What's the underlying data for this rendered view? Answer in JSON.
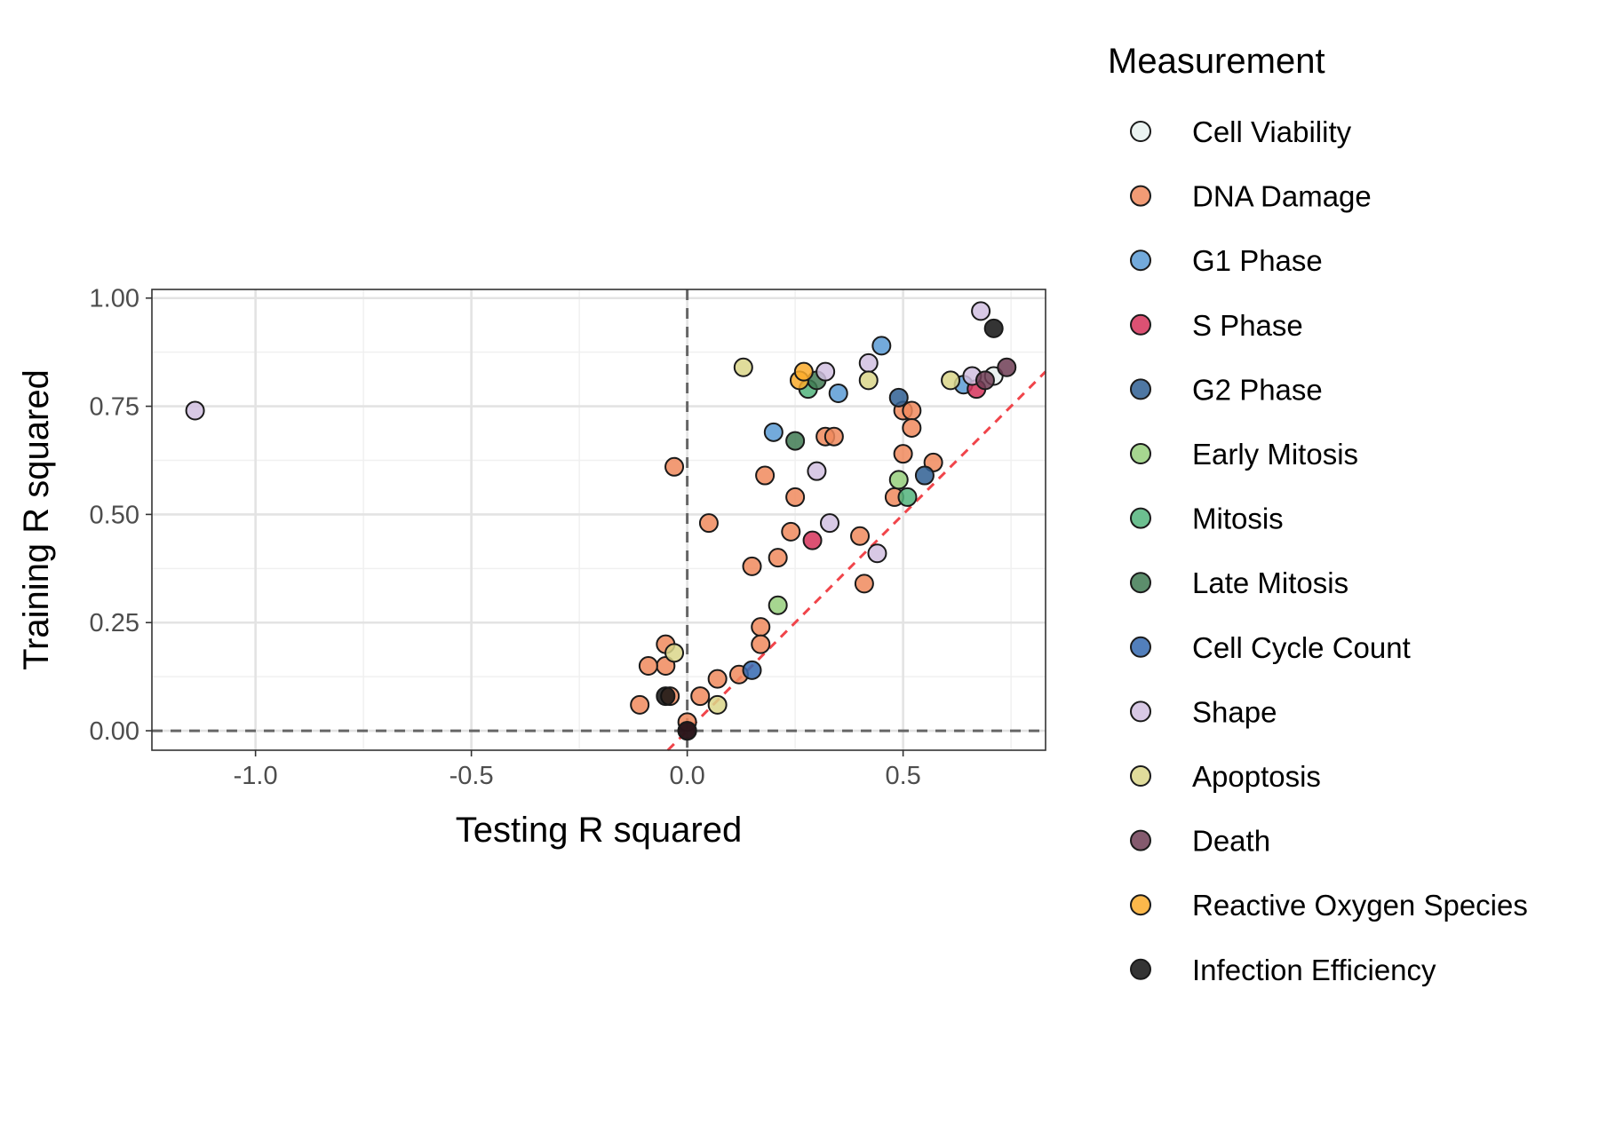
{
  "chart_data": {
    "type": "scatter",
    "xlabel": "Testing R squared",
    "ylabel": "Training R squared",
    "xlim": [
      -1.24,
      0.83
    ],
    "ylim": [
      -0.045,
      1.02
    ],
    "x_ticks": [
      -1.0,
      -0.5,
      0.0,
      0.5
    ],
    "x_tick_labels": [
      "-1.0",
      "-0.5",
      "0.0",
      "0.5"
    ],
    "y_ticks": [
      0.0,
      0.25,
      0.5,
      0.75,
      1.0
    ],
    "y_tick_labels": [
      "0.00",
      "0.25",
      "0.50",
      "0.75",
      "1.00"
    ],
    "grid": true,
    "reference_lines": [
      {
        "type": "vline",
        "x": 0,
        "style": "dashed",
        "color": "#666666"
      },
      {
        "type": "hline",
        "y": 0,
        "style": "dashed",
        "color": "#666666"
      },
      {
        "type": "identity",
        "slope": 1,
        "intercept": 0,
        "style": "dashed",
        "color": "#f0444a"
      }
    ],
    "legend": {
      "title": "Measurement",
      "position": "right",
      "entries": [
        {
          "label": "Cell Viability",
          "color": "#e8f1ee"
        },
        {
          "label": "DNA Damage",
          "color": "#f08a5d"
        },
        {
          "label": "G1 Phase",
          "color": "#5b9bd5"
        },
        {
          "label": "S Phase",
          "color": "#d6335a"
        },
        {
          "label": "G2 Phase",
          "color": "#2f5f93"
        },
        {
          "label": "Early Mitosis",
          "color": "#97cf7d"
        },
        {
          "label": "Mitosis",
          "color": "#52b47c"
        },
        {
          "label": "Late Mitosis",
          "color": "#3f7a52"
        },
        {
          "label": "Cell Cycle Count",
          "color": "#3468b0"
        },
        {
          "label": "Shape",
          "color": "#d1bfe0"
        },
        {
          "label": "Apoptosis",
          "color": "#dbd68a"
        },
        {
          "label": "Death",
          "color": "#6e3d55"
        },
        {
          "label": "Reactive Oxygen Species",
          "color": "#fbab2c"
        },
        {
          "label": "Infection Efficiency",
          "color": "#111111"
        }
      ]
    },
    "series": [
      {
        "name": "Cell Viability",
        "points": [
          [
            0.71,
            0.82
          ]
        ]
      },
      {
        "name": "DNA Damage",
        "points": [
          [
            -0.03,
            0.61
          ],
          [
            0.05,
            0.48
          ],
          [
            0.15,
            0.38
          ],
          [
            0.21,
            0.4
          ],
          [
            0.24,
            0.46
          ],
          [
            0.25,
            0.54
          ],
          [
            0.18,
            0.59
          ],
          [
            0.32,
            0.68
          ],
          [
            0.34,
            0.68
          ],
          [
            0.4,
            0.45
          ],
          [
            0.41,
            0.34
          ],
          [
            0.17,
            0.24
          ],
          [
            0.17,
            0.2
          ],
          [
            0.07,
            0.12
          ],
          [
            0.12,
            0.13
          ],
          [
            0.03,
            0.08
          ],
          [
            -0.05,
            0.2
          ],
          [
            -0.05,
            0.15
          ],
          [
            -0.09,
            0.15
          ],
          [
            -0.11,
            0.06
          ],
          [
            -0.04,
            0.08
          ],
          [
            0.0,
            0.02
          ],
          [
            0.48,
            0.54
          ],
          [
            0.5,
            0.64
          ],
          [
            0.5,
            0.74
          ],
          [
            0.52,
            0.74
          ],
          [
            0.52,
            0.7
          ],
          [
            0.57,
            0.62
          ]
        ]
      },
      {
        "name": "G1 Phase",
        "points": [
          [
            0.2,
            0.69
          ],
          [
            0.35,
            0.78
          ],
          [
            0.45,
            0.89
          ],
          [
            0.64,
            0.8
          ]
        ]
      },
      {
        "name": "S Phase",
        "points": [
          [
            0.29,
            0.44
          ],
          [
            0.67,
            0.79
          ],
          [
            0.0,
            0.0
          ]
        ]
      },
      {
        "name": "G2 Phase",
        "points": [
          [
            0.49,
            0.77
          ],
          [
            0.55,
            0.59
          ]
        ]
      },
      {
        "name": "Early Mitosis",
        "points": [
          [
            0.21,
            0.29
          ],
          [
            0.49,
            0.58
          ]
        ]
      },
      {
        "name": "Mitosis",
        "points": [
          [
            0.28,
            0.79
          ],
          [
            0.51,
            0.54
          ]
        ]
      },
      {
        "name": "Late Mitosis",
        "points": [
          [
            0.25,
            0.67
          ],
          [
            0.3,
            0.81
          ]
        ]
      },
      {
        "name": "Cell Cycle Count",
        "points": [
          [
            0.15,
            0.14
          ]
        ]
      },
      {
        "name": "Shape",
        "points": [
          [
            -1.14,
            0.74
          ],
          [
            0.3,
            0.6
          ],
          [
            0.32,
            0.83
          ],
          [
            0.42,
            0.85
          ],
          [
            0.33,
            0.48
          ],
          [
            0.44,
            0.41
          ],
          [
            0.68,
            0.97
          ],
          [
            0.66,
            0.82
          ]
        ]
      },
      {
        "name": "Apoptosis",
        "points": [
          [
            0.13,
            0.84
          ],
          [
            0.42,
            0.81
          ],
          [
            0.61,
            0.81
          ],
          [
            -0.03,
            0.18
          ],
          [
            0.07,
            0.06
          ]
        ]
      },
      {
        "name": "Death",
        "points": [
          [
            0.74,
            0.84
          ],
          [
            0.69,
            0.81
          ]
        ]
      },
      {
        "name": "Reactive Oxygen Species",
        "points": [
          [
            0.26,
            0.81
          ],
          [
            0.27,
            0.83
          ]
        ]
      },
      {
        "name": "Infection Efficiency",
        "points": [
          [
            -0.05,
            0.08
          ],
          [
            0.71,
            0.93
          ],
          [
            0.0,
            0.0
          ]
        ]
      }
    ]
  }
}
